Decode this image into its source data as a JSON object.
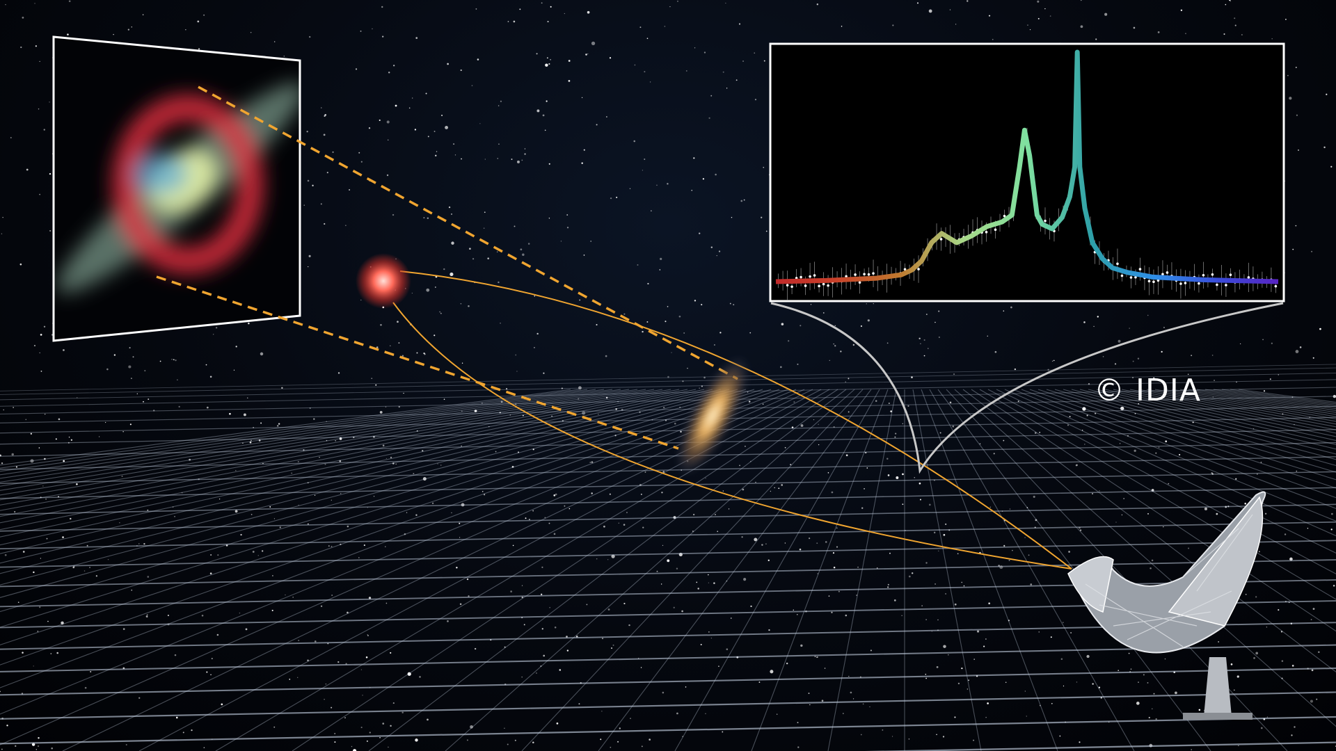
{
  "watermark": "© IDIA",
  "scene": {
    "objects": [
      "background-star",
      "foreground-galaxy",
      "radio-telescope-dish",
      "lensed-image-inset",
      "spectrum-inset"
    ],
    "colors": {
      "light_path": "#f0a530",
      "frame": "#ffffff",
      "grid": "#c8d4e6"
    }
  },
  "chart_data": {
    "type": "line",
    "title": "",
    "xlabel": "",
    "ylabel": "",
    "axes_shown": false,
    "grid": false,
    "x": [
      0,
      10,
      20,
      25,
      27,
      29,
      31,
      33,
      34.5,
      36,
      39,
      42,
      45,
      47,
      48.5,
      49.5,
      50.5,
      52,
      53,
      55,
      57,
      58.5,
      59.5,
      60,
      60.5,
      61.5,
      63,
      65,
      67,
      70,
      75,
      85,
      100
    ],
    "y": [
      0.0,
      0.005,
      0.015,
      0.03,
      0.05,
      0.09,
      0.17,
      0.21,
      0.19,
      0.17,
      0.2,
      0.24,
      0.26,
      0.29,
      0.5,
      0.66,
      0.55,
      0.29,
      0.25,
      0.23,
      0.28,
      0.37,
      0.5,
      1.0,
      0.5,
      0.32,
      0.17,
      0.1,
      0.06,
      0.04,
      0.02,
      0.008,
      0.0
    ],
    "gradient_colors": [
      "#c0282a",
      "#c8402a",
      "#c0782e",
      "#a8d888",
      "#7fe0a0",
      "#2ea0a8",
      "#2f8ee8",
      "#3a4ad8",
      "#5a20c0"
    ]
  }
}
